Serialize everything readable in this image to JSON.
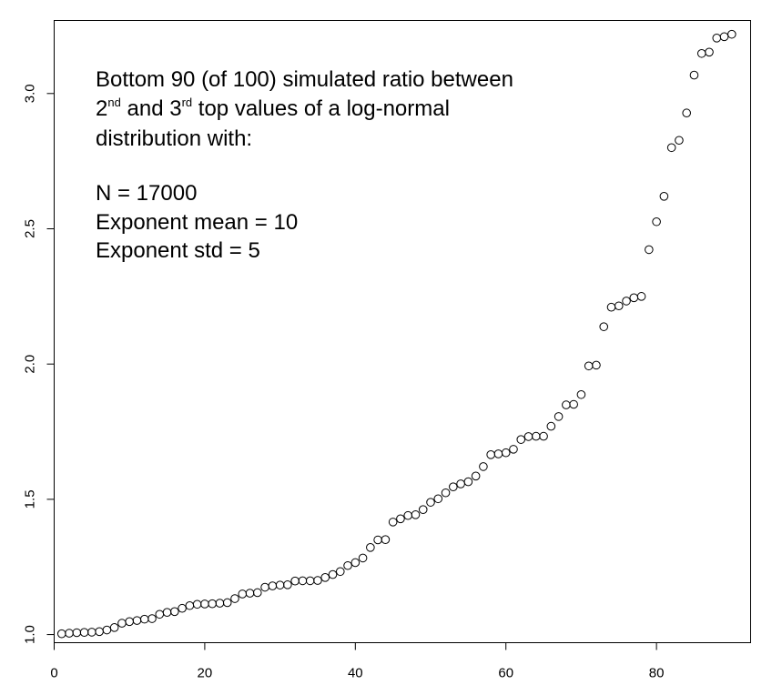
{
  "chart_data": {
    "type": "scatter",
    "title": "",
    "xlabel": "",
    "ylabel": "",
    "xlim": [
      0,
      92.5
    ],
    "ylim": [
      0.97,
      3.27
    ],
    "x_ticks": [
      0,
      20,
      40,
      60,
      80
    ],
    "x_tick_labels": [
      "0",
      "20",
      "40",
      "60",
      "80"
    ],
    "y_ticks": [
      1.0,
      1.5,
      2.0,
      2.5,
      3.0
    ],
    "y_tick_labels": [
      "1.0",
      "1.5",
      "2.0",
      "2.5",
      "3.0"
    ],
    "grid": false,
    "legend": "none",
    "marker": "open-circle",
    "annotation": {
      "line1": "Bottom 90 (of 100) simulated ratio between",
      "line2_pre": "2",
      "line2_sup1": "nd",
      "line2_mid": " and 3",
      "line2_sup2": "rd",
      "line2_post": " top values of a log-normal",
      "line3": "distribution with:",
      "line4": "N = 17000",
      "line5": "Exponent mean = 10",
      "line6": "Exponent std = 5"
    },
    "x": [
      1,
      2,
      3,
      4,
      5,
      6,
      7,
      8,
      9,
      10,
      11,
      12,
      13,
      14,
      15,
      16,
      17,
      18,
      19,
      20,
      21,
      22,
      23,
      24,
      25,
      26,
      27,
      28,
      29,
      30,
      31,
      32,
      33,
      34,
      35,
      36,
      37,
      38,
      39,
      40,
      41,
      42,
      43,
      44,
      45,
      46,
      47,
      48,
      49,
      50,
      51,
      52,
      53,
      54,
      55,
      56,
      57,
      58,
      59,
      60,
      61,
      62,
      63,
      64,
      65,
      66,
      67,
      68,
      69,
      70,
      71,
      72,
      73,
      74,
      75,
      76,
      77,
      78,
      79,
      80,
      81,
      82,
      83,
      84,
      85,
      86,
      87,
      88,
      89,
      90
    ],
    "y": [
      1.003,
      1.005,
      1.007,
      1.008,
      1.009,
      1.011,
      1.017,
      1.026,
      1.042,
      1.048,
      1.052,
      1.057,
      1.059,
      1.075,
      1.082,
      1.085,
      1.097,
      1.107,
      1.112,
      1.113,
      1.114,
      1.116,
      1.118,
      1.133,
      1.15,
      1.153,
      1.155,
      1.175,
      1.18,
      1.183,
      1.184,
      1.198,
      1.199,
      1.199,
      1.2,
      1.211,
      1.222,
      1.233,
      1.255,
      1.266,
      1.283,
      1.322,
      1.35,
      1.351,
      1.416,
      1.428,
      1.44,
      1.443,
      1.462,
      1.489,
      1.502,
      1.524,
      1.546,
      1.557,
      1.565,
      1.586,
      1.621,
      1.665,
      1.668,
      1.672,
      1.685,
      1.721,
      1.732,
      1.733,
      1.733,
      1.77,
      1.806,
      1.849,
      1.851,
      1.887,
      1.993,
      1.996,
      2.138,
      2.21,
      2.215,
      2.233,
      2.245,
      2.25,
      2.423,
      2.526,
      2.62,
      2.8,
      2.827,
      2.928,
      3.068,
      3.148,
      3.153,
      3.205,
      3.21,
      3.219
    ]
  }
}
